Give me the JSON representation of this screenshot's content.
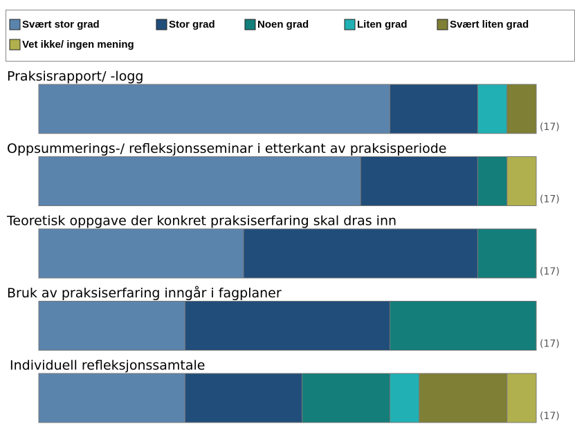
{
  "chart_data": {
    "type": "stacked-bar-horizontal",
    "categories": [
      "Praksisrapport/ -logg",
      "Oppsummerings-/ refleksjonsseminar i etterkant av praksisperiode",
      "Teoretisk oppgave der konkret praksiserfaring skal dras inn",
      "Bruk av praksiserfaring inngår i fagplaner",
      "Individuell refleksjonssamtale"
    ],
    "series": [
      {
        "name": "Svært stor  grad",
        "color": "#5b84ad",
        "values": [
          12,
          11,
          7,
          5,
          5
        ]
      },
      {
        "name": "Stor grad",
        "color": "#214d7a",
        "values": [
          3,
          4,
          8,
          7,
          4
        ]
      },
      {
        "name": "Noen grad",
        "color": "#137e7a",
        "values": [
          0,
          1,
          2,
          5,
          3
        ]
      },
      {
        "name": "Liten grad",
        "color": "#21b0b3",
        "values": [
          1,
          0,
          0,
          0,
          1
        ]
      },
      {
        "name": "Svært liten  grad",
        "color": "#7f7f35",
        "values": [
          1,
          0,
          0,
          0,
          3
        ]
      },
      {
        "name": "Vet ikke/  ingen mening",
        "color": "#b0b04e",
        "values": [
          0,
          1,
          0,
          0,
          1
        ]
      }
    ],
    "n_labels": [
      "(17)",
      "(17)",
      "(17)",
      "(17)",
      "(17)"
    ],
    "legend": "top"
  }
}
